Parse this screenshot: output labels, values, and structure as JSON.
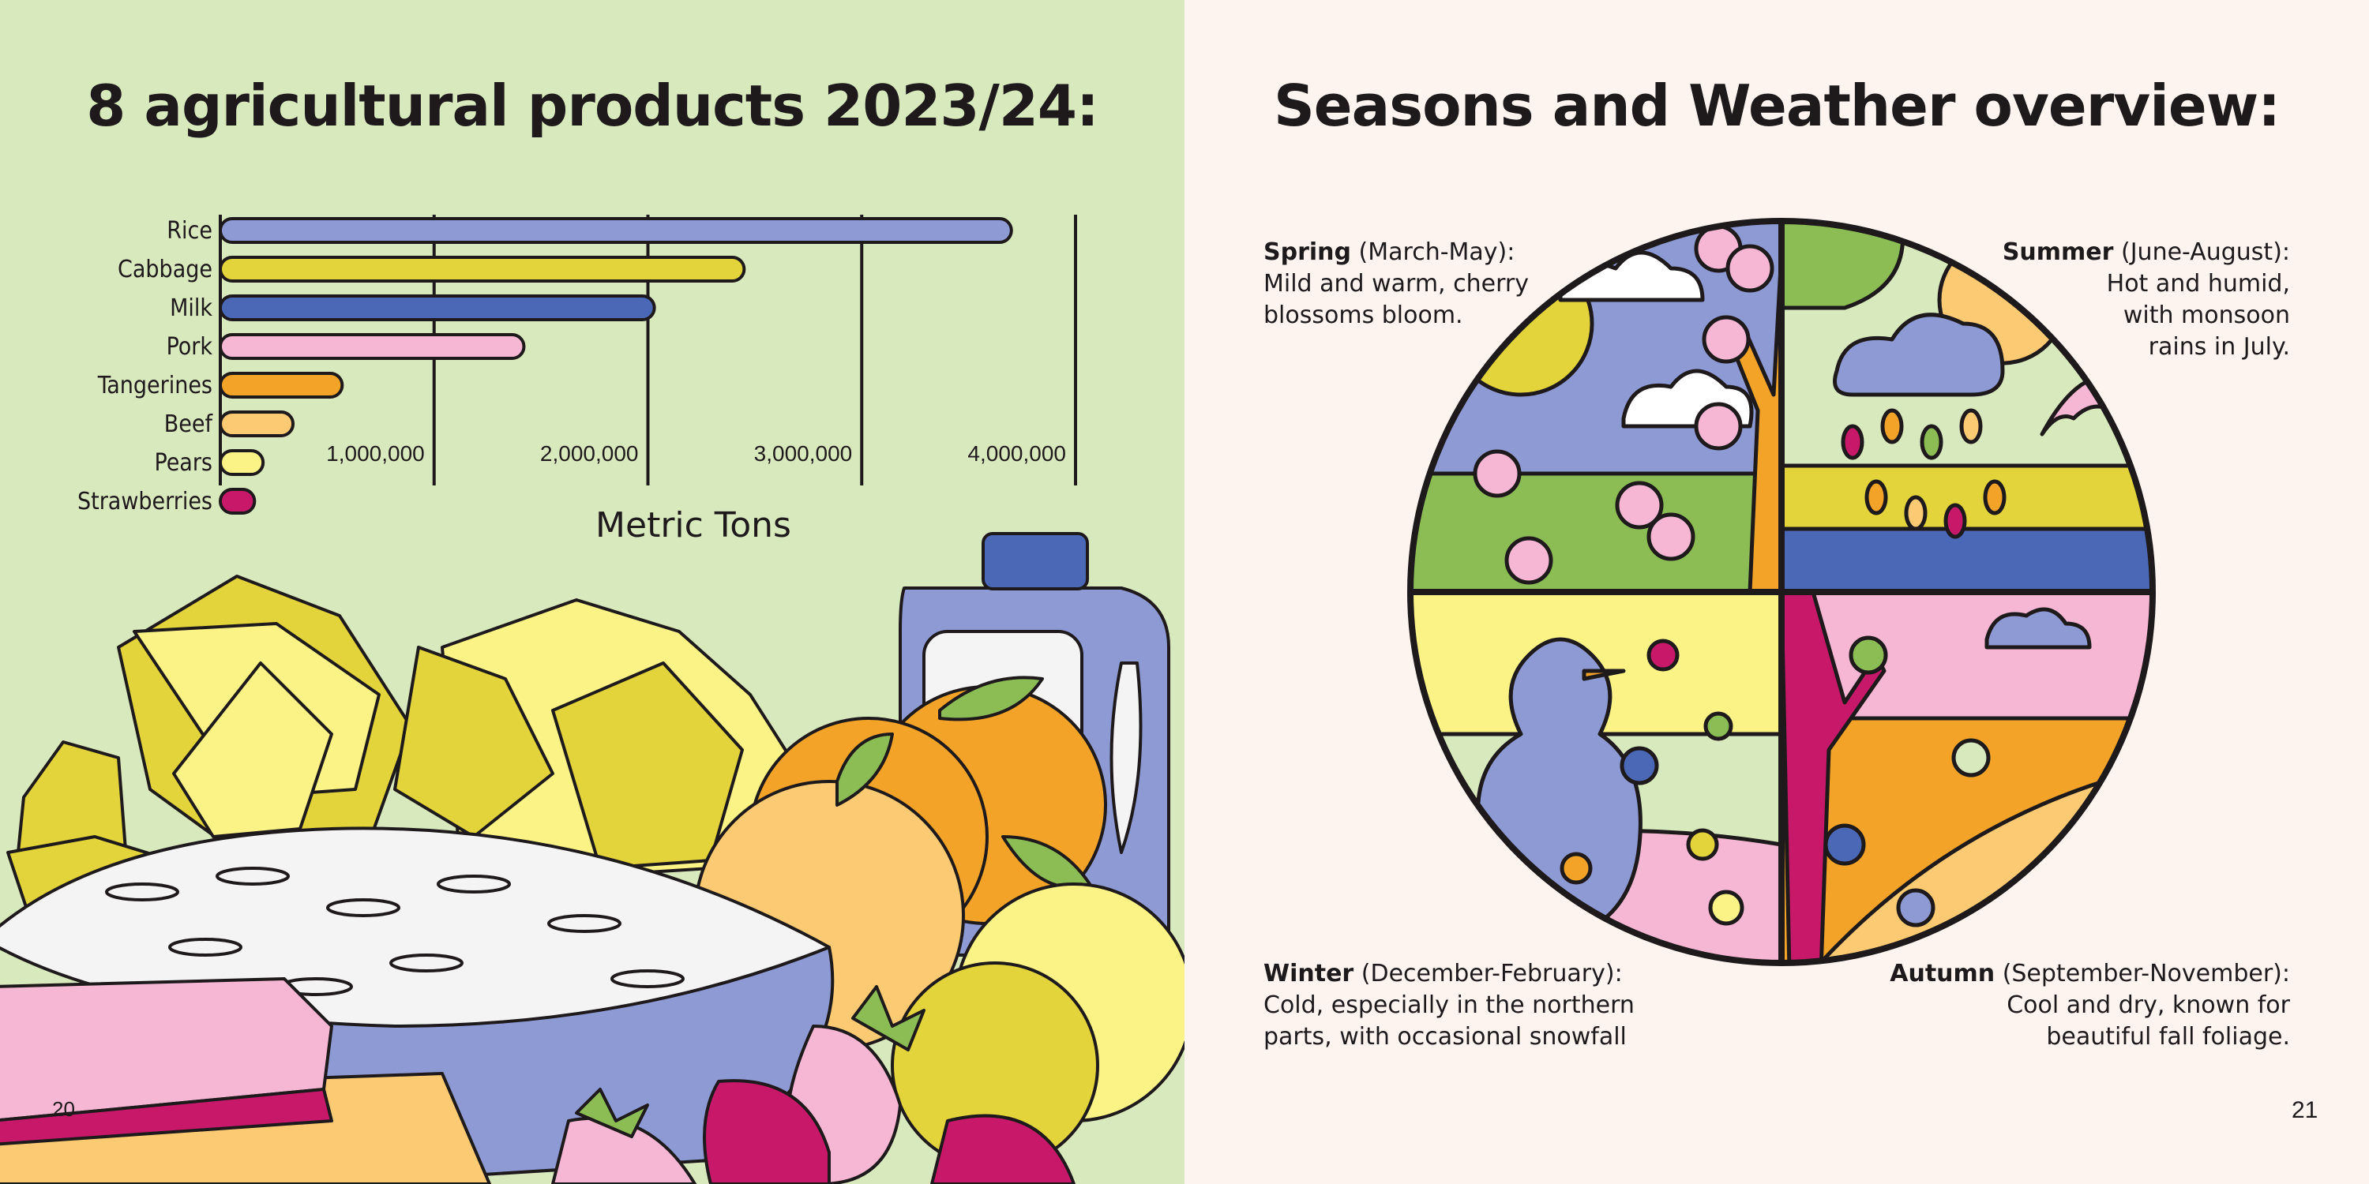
{
  "left_page": {
    "title": "8 agricultural products 2023/24:",
    "page_number": "20"
  },
  "right_page": {
    "title": "Seasons and Weather overview:",
    "page_number": "21",
    "seasons": {
      "spring": {
        "name": "Spring",
        "months": "(March-May):",
        "line1": "Mild and warm, cherry",
        "line2": "blossoms bloom.",
        "line3": ""
      },
      "summer": {
        "name": "Summer",
        "months": "(June-August):",
        "line1": "Hot and humid,",
        "line2": "with monsoon",
        "line3": "rains in July."
      },
      "winter": {
        "name": "Winter",
        "months": "(December-February):",
        "line1": "Cold, especially in the northern",
        "line2": "parts, with occasional snowfall",
        "line3": ""
      },
      "autumn": {
        "name": "Autumn",
        "months": "(September-November):",
        "line1": "Cool and dry, known for",
        "line2": "beautiful fall foliage.",
        "line3": ""
      }
    }
  },
  "colors": {
    "left_bg": "#d9e9be",
    "right_bg": "#fdf3ef",
    "outline": "#1e1a1c"
  },
  "chart_data": {
    "type": "bar",
    "orientation": "horizontal",
    "title": "8 agricultural products 2023/24:",
    "xlabel": "Metric Tons",
    "ylabel": "",
    "categories": [
      "Rice",
      "Cabbage",
      "Milk",
      "Pork",
      "Tangerines",
      "Beef",
      "Pears",
      "Strawberries"
    ],
    "values": [
      3700000,
      2450000,
      2030000,
      1420000,
      570000,
      340000,
      200000,
      160000
    ],
    "bar_colors": [
      "#8e9ad4",
      "#e2d43a",
      "#4a68b6",
      "#f5b7d3",
      "#f2a328",
      "#fcca72",
      "#fbf386",
      "#c8186a"
    ],
    "xticks": [
      1000000,
      2000000,
      3000000,
      4000000
    ],
    "xtick_labels": [
      "1,000,000",
      "2,000,000",
      "3,000,000",
      "4,000,000"
    ],
    "xlim": [
      0,
      4000000
    ],
    "grid": true
  }
}
